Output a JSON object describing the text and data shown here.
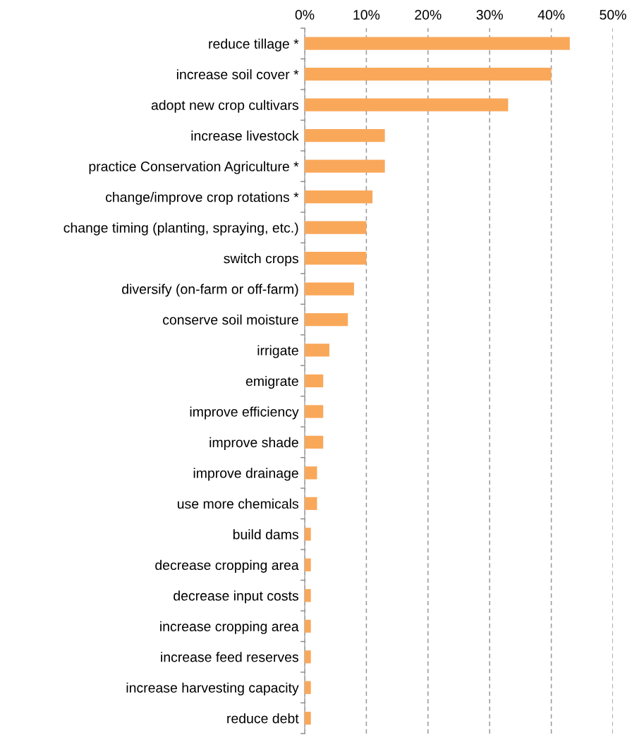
{
  "chart_data": {
    "type": "bar",
    "orientation": "horizontal",
    "categories": [
      "reduce tillage *",
      "increase soil cover *",
      "adopt new crop cultivars",
      "increase livestock",
      "practice Conservation Agriculture *",
      "change/improve crop rotations *",
      "change timing (planting, spraying, etc.)",
      "switch crops",
      "diversify (on-farm or off-farm)",
      "conserve soil moisture",
      "irrigate",
      "emigrate",
      "improve efficiency",
      "improve shade",
      "improve drainage",
      "use more chemicals",
      "build dams",
      "decrease cropping area",
      "decrease input costs",
      "increase cropping area",
      "increase feed reserves",
      "increase harvesting capacity",
      "reduce debt"
    ],
    "values": [
      43,
      40,
      33,
      13,
      13,
      11,
      10,
      10,
      8,
      7,
      4,
      3,
      3,
      3,
      2,
      2,
      1,
      1,
      1,
      1,
      1,
      1,
      1
    ],
    "color": "#f9a85a",
    "xlim": [
      0,
      50
    ],
    "xticks": [
      {
        "value": 0,
        "label": "0%"
      },
      {
        "value": 10,
        "label": "10%"
      },
      {
        "value": 20,
        "label": "20%"
      },
      {
        "value": 30,
        "label": "30%"
      },
      {
        "value": 40,
        "label": "40%"
      },
      {
        "value": 50,
        "label": "50%"
      }
    ],
    "grid": "x"
  }
}
